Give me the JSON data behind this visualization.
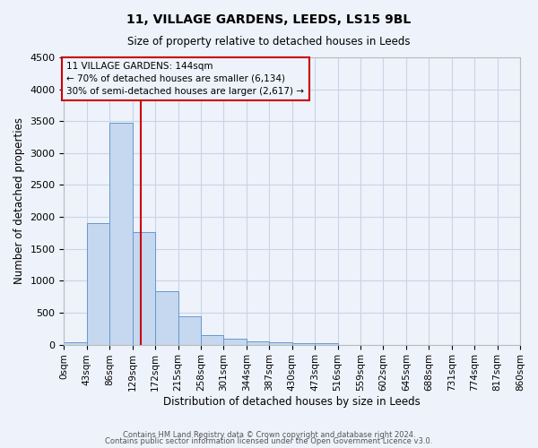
{
  "title": "11, VILLAGE GARDENS, LEEDS, LS15 9BL",
  "subtitle": "Size of property relative to detached houses in Leeds",
  "xlabel": "Distribution of detached houses by size in Leeds",
  "ylabel": "Number of detached properties",
  "bar_color": "#c5d8f0",
  "bar_edge_color": "#6699cc",
  "background_color": "#eef2fb",
  "grid_color": "#c8d4e8",
  "bin_labels": [
    "0sqm",
    "43sqm",
    "86sqm",
    "129sqm",
    "172sqm",
    "215sqm",
    "258sqm",
    "301sqm",
    "344sqm",
    "387sqm",
    "430sqm",
    "473sqm",
    "516sqm",
    "559sqm",
    "602sqm",
    "645sqm",
    "688sqm",
    "731sqm",
    "774sqm",
    "817sqm",
    "860sqm"
  ],
  "bar_values": [
    30,
    1900,
    3480,
    1760,
    840,
    450,
    155,
    90,
    55,
    40,
    25,
    20,
    0,
    0,
    0,
    0,
    0,
    0,
    0,
    0,
    0
  ],
  "bin_edges": [
    0,
    43,
    86,
    129,
    172,
    215,
    258,
    301,
    344,
    387,
    430,
    473,
    516,
    559,
    602,
    645,
    688,
    731,
    774,
    817,
    860
  ],
  "property_size": 144,
  "red_line_color": "#cc0000",
  "annotation_line1": "11 VILLAGE GARDENS: 144sqm",
  "annotation_line2": "← 70% of detached houses are smaller (6,134)",
  "annotation_line3": "30% of semi-detached houses are larger (2,617) →",
  "ylim": [
    0,
    4500
  ],
  "yticks": [
    0,
    500,
    1000,
    1500,
    2000,
    2500,
    3000,
    3500,
    4000,
    4500
  ],
  "footer1": "Contains HM Land Registry data © Crown copyright and database right 2024.",
  "footer2": "Contains public sector information licensed under the Open Government Licence v3.0."
}
